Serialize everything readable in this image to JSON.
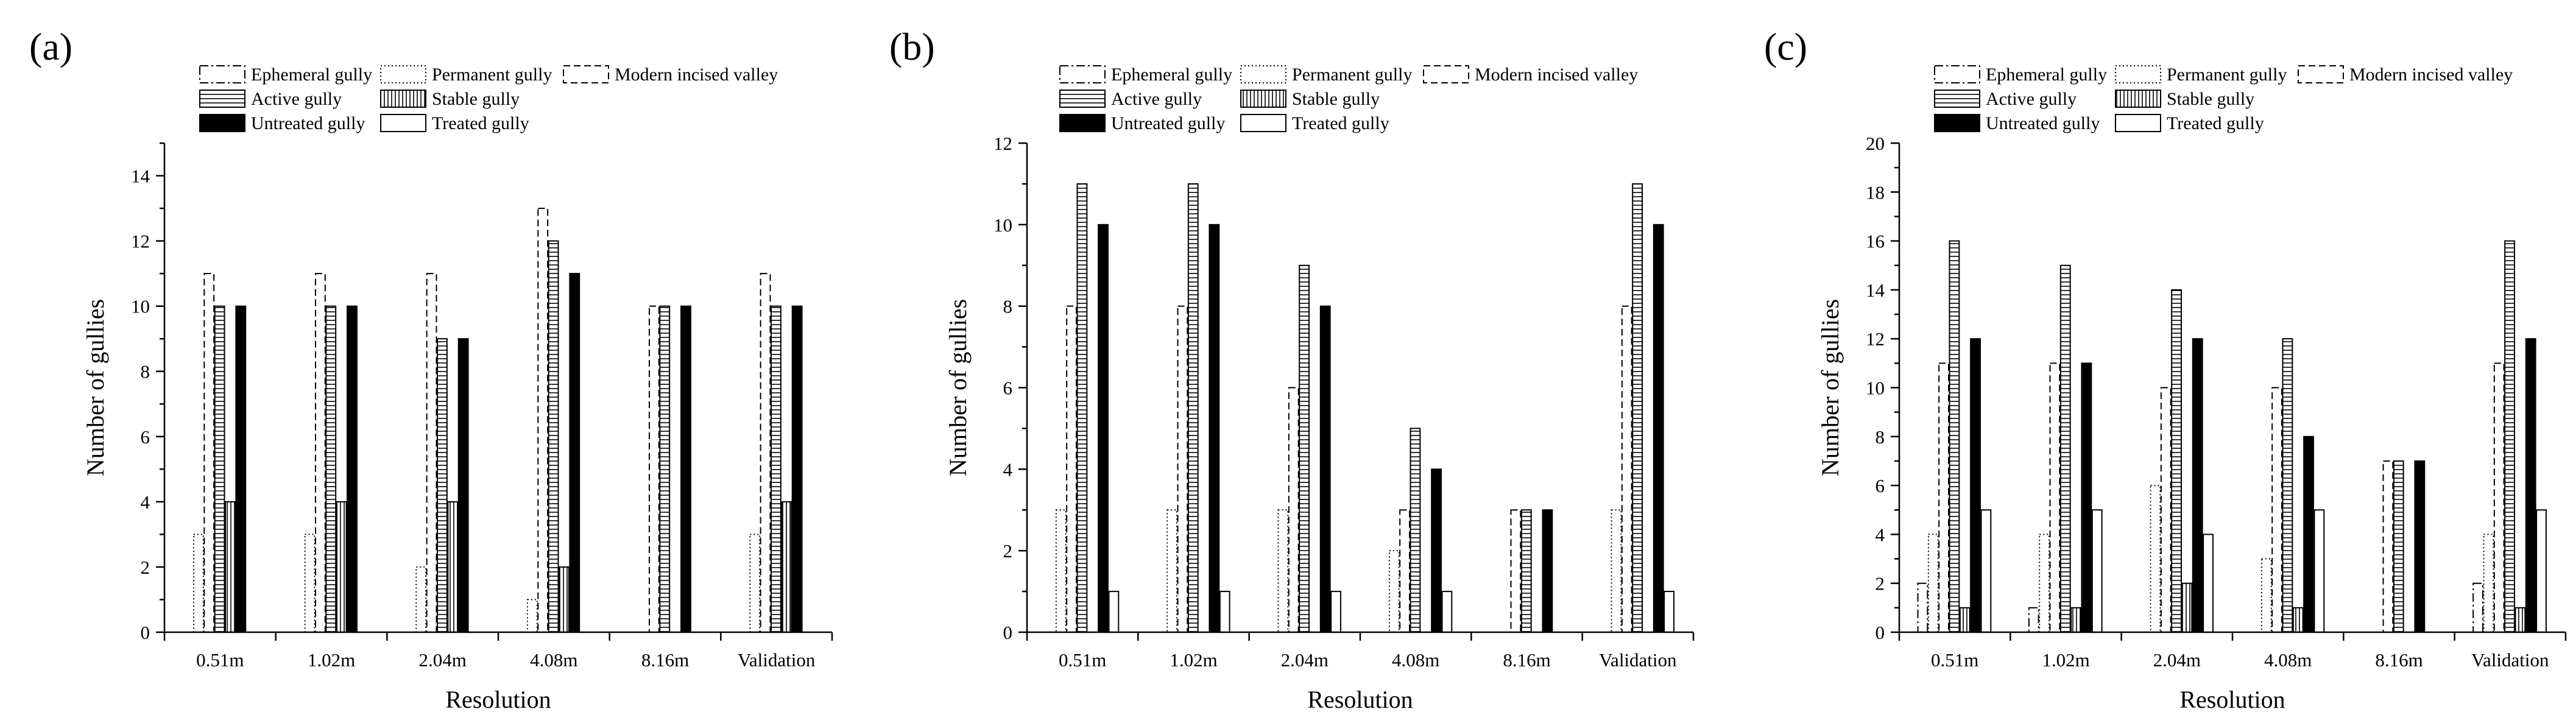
{
  "figure": {
    "series": [
      {
        "key": "ephemeral",
        "name": "Ephemeral gully",
        "pattern": "dashdot"
      },
      {
        "key": "permanent",
        "name": "Permanent gully",
        "pattern": "dotted"
      },
      {
        "key": "modern",
        "name": "Modern incised valley",
        "pattern": "dashed"
      },
      {
        "key": "active",
        "name": "Active gully",
        "pattern": "hlines"
      },
      {
        "key": "stable",
        "name": "Stable gully",
        "pattern": "vlines"
      },
      {
        "key": "untreated",
        "name": "Untreated gully",
        "pattern": "solid-black"
      },
      {
        "key": "treated",
        "name": "Treated gully",
        "pattern": "white"
      }
    ]
  },
  "chart_data": [
    {
      "type": "bar",
      "panel_label": "(a)",
      "xlabel": "Resolution",
      "ylabel": "Number of gullies",
      "categories": [
        "0.51m",
        "1.02m",
        "2.04m",
        "4.08m",
        "8.16m",
        "Validation"
      ],
      "ylim": [
        0,
        15
      ],
      "yticks": [
        0,
        2,
        4,
        6,
        8,
        10,
        12,
        14
      ],
      "legend": "top",
      "series": [
        {
          "key": "ephemeral",
          "name": "Ephemeral gully",
          "values": [
            0,
            0,
            0,
            0,
            0,
            0
          ]
        },
        {
          "key": "permanent",
          "name": "Permanent gully",
          "values": [
            3,
            3,
            2,
            1,
            0,
            3
          ]
        },
        {
          "key": "modern",
          "name": "Modern incised valley",
          "values": [
            11,
            11,
            11,
            13,
            10,
            11
          ]
        },
        {
          "key": "active",
          "name": "Active gully",
          "values": [
            10,
            10,
            9,
            12,
            10,
            10
          ]
        },
        {
          "key": "stable",
          "name": "Stable gully",
          "values": [
            4,
            4,
            4,
            2,
            0,
            4
          ]
        },
        {
          "key": "untreated",
          "name": "Untreated gully",
          "values": [
            10,
            10,
            9,
            11,
            10,
            10
          ]
        },
        {
          "key": "treated",
          "name": "Treated gully",
          "values": [
            0,
            0,
            0,
            0,
            0,
            0
          ]
        }
      ]
    },
    {
      "type": "bar",
      "panel_label": "(b)",
      "xlabel": "Resolution",
      "ylabel": "Number of gullies",
      "categories": [
        "0.51m",
        "1.02m",
        "2.04m",
        "4.08m",
        "8.16m",
        "Validation"
      ],
      "ylim": [
        0,
        12
      ],
      "yticks": [
        0,
        2,
        4,
        6,
        8,
        10,
        12
      ],
      "legend": "top",
      "series": [
        {
          "key": "ephemeral",
          "name": "Ephemeral gully",
          "values": [
            0,
            0,
            0,
            0,
            0,
            0
          ]
        },
        {
          "key": "permanent",
          "name": "Permanent gully",
          "values": [
            3,
            3,
            3,
            2,
            0,
            3
          ]
        },
        {
          "key": "modern",
          "name": "Modern incised valley",
          "values": [
            8,
            8,
            6,
            3,
            3,
            8
          ]
        },
        {
          "key": "active",
          "name": "Active gully",
          "values": [
            11,
            11,
            9,
            5,
            3,
            11
          ]
        },
        {
          "key": "stable",
          "name": "Stable gully",
          "values": [
            0,
            0,
            0,
            0,
            0,
            0
          ]
        },
        {
          "key": "untreated",
          "name": "Untreated gully",
          "values": [
            10,
            10,
            8,
            4,
            3,
            10
          ]
        },
        {
          "key": "treated",
          "name": "Treated gully",
          "values": [
            1,
            1,
            1,
            1,
            0,
            1
          ]
        }
      ]
    },
    {
      "type": "bar",
      "panel_label": "(c)",
      "xlabel": "Resolution",
      "ylabel": "Number of gullies",
      "categories": [
        "0.51m",
        "1.02m",
        "2.04m",
        "4.08m",
        "8.16m",
        "Validation"
      ],
      "ylim": [
        0,
        20
      ],
      "yticks": [
        0,
        2,
        4,
        6,
        8,
        10,
        12,
        14,
        16,
        18,
        20
      ],
      "legend": "top",
      "series": [
        {
          "key": "ephemeral",
          "name": "Ephemeral gully",
          "values": [
            2,
            1,
            0,
            0,
            0,
            2
          ]
        },
        {
          "key": "permanent",
          "name": "Permanent gully",
          "values": [
            4,
            4,
            6,
            3,
            0,
            4
          ]
        },
        {
          "key": "modern",
          "name": "Modern incised valley",
          "values": [
            11,
            11,
            10,
            10,
            7,
            11
          ]
        },
        {
          "key": "active",
          "name": "Active gully",
          "values": [
            16,
            15,
            14,
            12,
            7,
            16
          ]
        },
        {
          "key": "stable",
          "name": "Stable gully",
          "values": [
            1,
            1,
            2,
            1,
            0,
            1
          ]
        },
        {
          "key": "untreated",
          "name": "Untreated gully",
          "values": [
            12,
            11,
            12,
            8,
            7,
            12
          ]
        },
        {
          "key": "treated",
          "name": "Treated gully",
          "values": [
            5,
            5,
            4,
            5,
            0,
            5
          ]
        }
      ]
    }
  ]
}
